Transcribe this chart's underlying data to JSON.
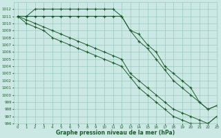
{
  "background_color": "#cce8e4",
  "grid_color": "#99ccbb",
  "line_color": "#1a5c2a",
  "xlabel": "Graphe pression niveau de la mer (hPa)",
  "ylim": [
    996,
    1013
  ],
  "xlim": [
    -0.5,
    23
  ],
  "yticks": [
    996,
    997,
    998,
    999,
    1000,
    1001,
    1002,
    1003,
    1004,
    1005,
    1006,
    1007,
    1008,
    1009,
    1010,
    1011,
    1012
  ],
  "xticks": [
    0,
    1,
    2,
    3,
    4,
    5,
    6,
    7,
    8,
    9,
    10,
    11,
    12,
    13,
    14,
    15,
    16,
    17,
    18,
    19,
    20,
    21,
    22,
    23
  ],
  "series": [
    [
      1011,
      1011,
      1012,
      1012,
      1012,
      1012,
      1012,
      1012,
      1012,
      1012,
      1012,
      1012,
      1011,
      1009,
      1008.5,
      1007,
      1006,
      1004,
      1003,
      1002,
      1001,
      999,
      998,
      998.5
    ],
    [
      1011,
      1011,
      1011,
      1011,
      1011,
      1011,
      1011,
      1011,
      1011,
      1011,
      1011,
      1011,
      1011,
      1009,
      1007.5,
      1006.5,
      1005,
      1003.5,
      1002,
      1001,
      1000,
      999,
      998,
      998.5
    ],
    [
      1011,
      1010.5,
      1010,
      1009.5,
      1009,
      1008.5,
      1008,
      1007.5,
      1007,
      1006.5,
      1006,
      1005.5,
      1005,
      1003,
      1002,
      1001,
      1000,
      999,
      998,
      997.5,
      997,
      996.5,
      996,
      997
    ],
    [
      1011,
      1010,
      1009.5,
      1009,
      1008,
      1007.5,
      1007,
      1006.5,
      1006,
      1005.5,
      1005,
      1004.5,
      1004,
      1002.5,
      1001,
      1000,
      999,
      998,
      997,
      996.5,
      996,
      996,
      996,
      997
    ]
  ]
}
